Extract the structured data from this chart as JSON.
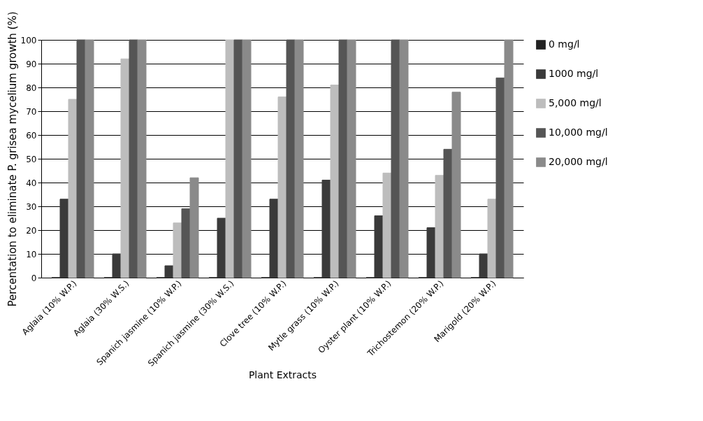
{
  "chart_data": {
    "type": "bar",
    "xlabel": "Plant Extracts",
    "ylabel": "Percentation to eliminate P. grisea mycelium growth (%)",
    "categories": [
      "Aglaia (10% W.P.)",
      "Aglaia (30% W.S.)",
      "Spanich jasmine (10% W.P.)",
      "Spanich jasmine (30% W.S.)",
      "Clove tree (10% W.P.)",
      "Mytle grass (10% W.P.)",
      "Oyster plant (10% W.P.)",
      "Trichostemon (20% W.P.)",
      "Marigold (20% W.P.)"
    ],
    "series": [
      {
        "name": "0 mg/l",
        "color": "#222222",
        "values": [
          0,
          0,
          0,
          0,
          0,
          0,
          0,
          0,
          0
        ]
      },
      {
        "name": "1000 mg/l",
        "color": "#3a3a3a",
        "values": [
          33,
          10,
          5,
          25,
          33,
          41,
          26,
          21,
          10
        ]
      },
      {
        "name": "5,000 mg/l",
        "color": "#bdbdbd",
        "values": [
          75,
          92,
          23,
          100,
          76,
          81,
          44,
          43,
          33
        ]
      },
      {
        "name": "10,000 mg/l",
        "color": "#555555",
        "values": [
          100,
          100,
          29,
          100,
          100,
          100,
          100,
          54,
          84
        ]
      },
      {
        "name": "20,000 mg/l",
        "color": "#8a8a8a",
        "values": [
          100,
          100,
          42,
          100,
          100,
          100,
          100,
          78,
          100
        ]
      }
    ],
    "ylim": [
      0,
      100
    ],
    "yticks": [
      0,
      10,
      20,
      30,
      40,
      50,
      60,
      70,
      80,
      90,
      100
    ],
    "grid": "y",
    "legend": "right"
  }
}
